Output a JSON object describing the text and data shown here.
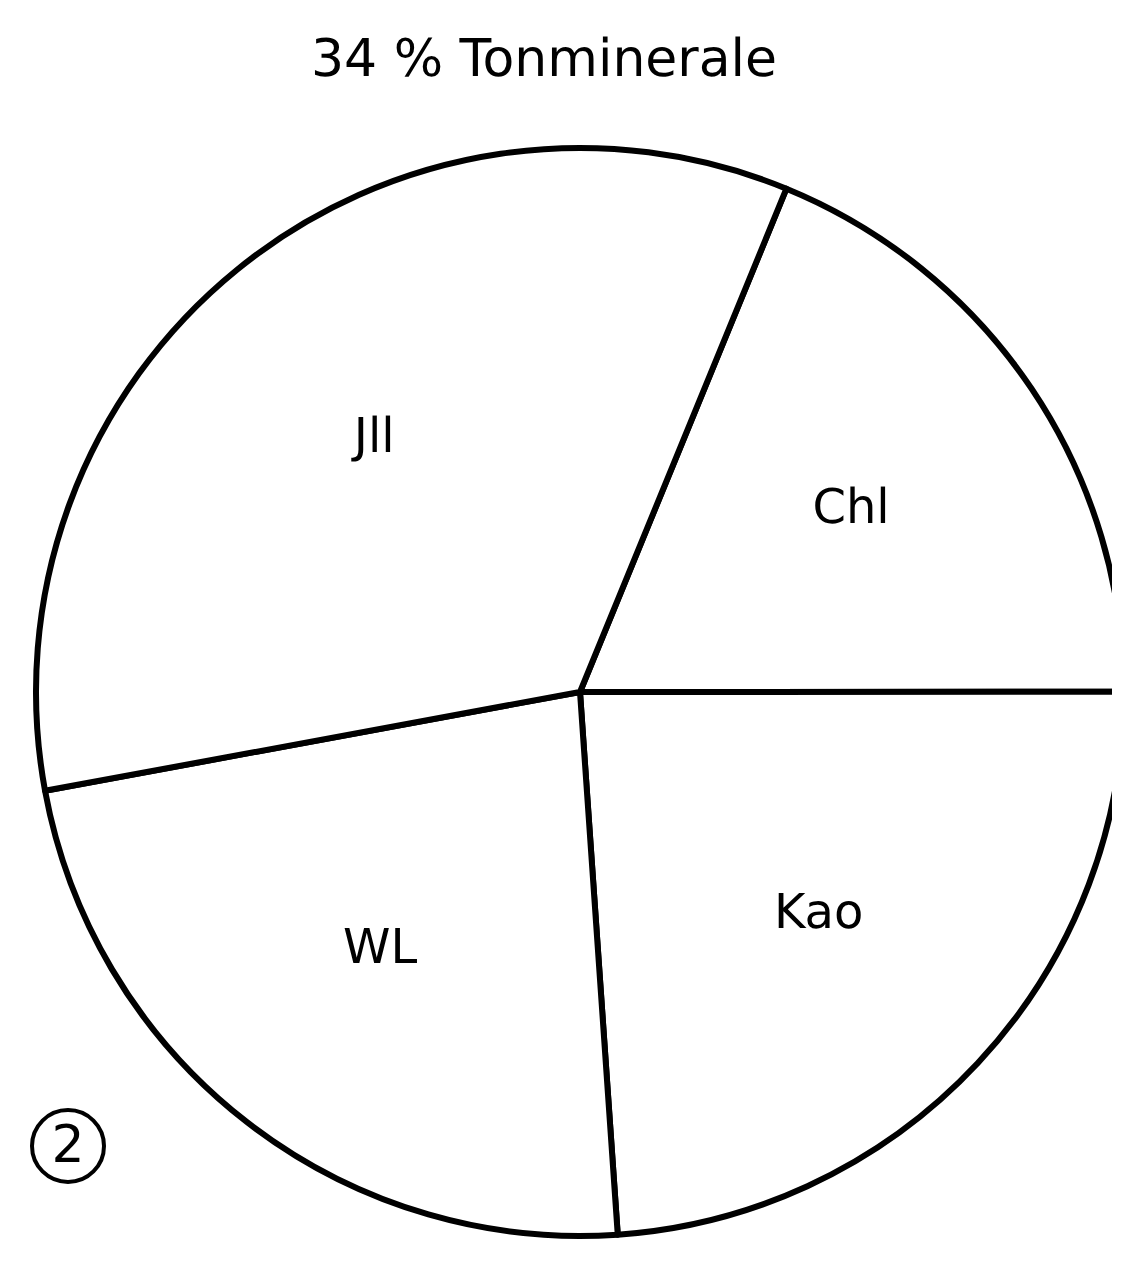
{
  "chart_data": {
    "type": "pie",
    "title": "34 % Tonminerale",
    "categories": [
      "Chl",
      "Kao",
      "WL",
      "Jll"
    ],
    "values": [
      18.8,
      23.9,
      23.2,
      34.1
    ],
    "colors": [
      "#ffffff",
      "#ffffff",
      "#ffffff",
      "#ffffff"
    ],
    "annotations": [
      "2"
    ]
  }
}
